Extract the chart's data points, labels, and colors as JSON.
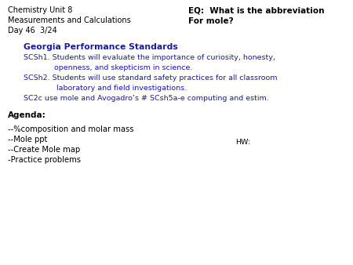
{
  "bg_color": "#ffffff",
  "top_left_lines": [
    "Chemistry Unit 8",
    "Measurements and Calculations",
    "Day 46  3/24"
  ],
  "eq_line1": "EQ:  What is the abbreviation",
  "eq_line2": "For mole?",
  "gps_title": "Georgia Performance Standards",
  "gps_lines": [
    "SCSh1. Students will evaluate the importance of curiosity, honesty,",
    "             openness, and skepticism in science.",
    "SCSh2. Students will use standard safety practices for all classroom",
    "              laboratory and field investigations.",
    "SC2c use mole and Avogadro’s # SCsh5a-e computing and estim."
  ],
  "agenda_title": "Agenda:",
  "agenda_lines": [
    "--%composition and molar mass",
    "--Mole ppt",
    "--Create Mole map",
    "-Practice problems"
  ],
  "hw_text": "HW:",
  "text_color_black": "#000000",
  "text_color_blue": "#1a1aaa",
  "font_size_topleft": 7.0,
  "font_size_eq": 7.5,
  "font_size_gps_title": 7.8,
  "font_size_gps_body": 6.8,
  "font_size_agenda_title": 7.5,
  "font_size_agenda_body": 7.2,
  "font_size_hw": 6.8
}
